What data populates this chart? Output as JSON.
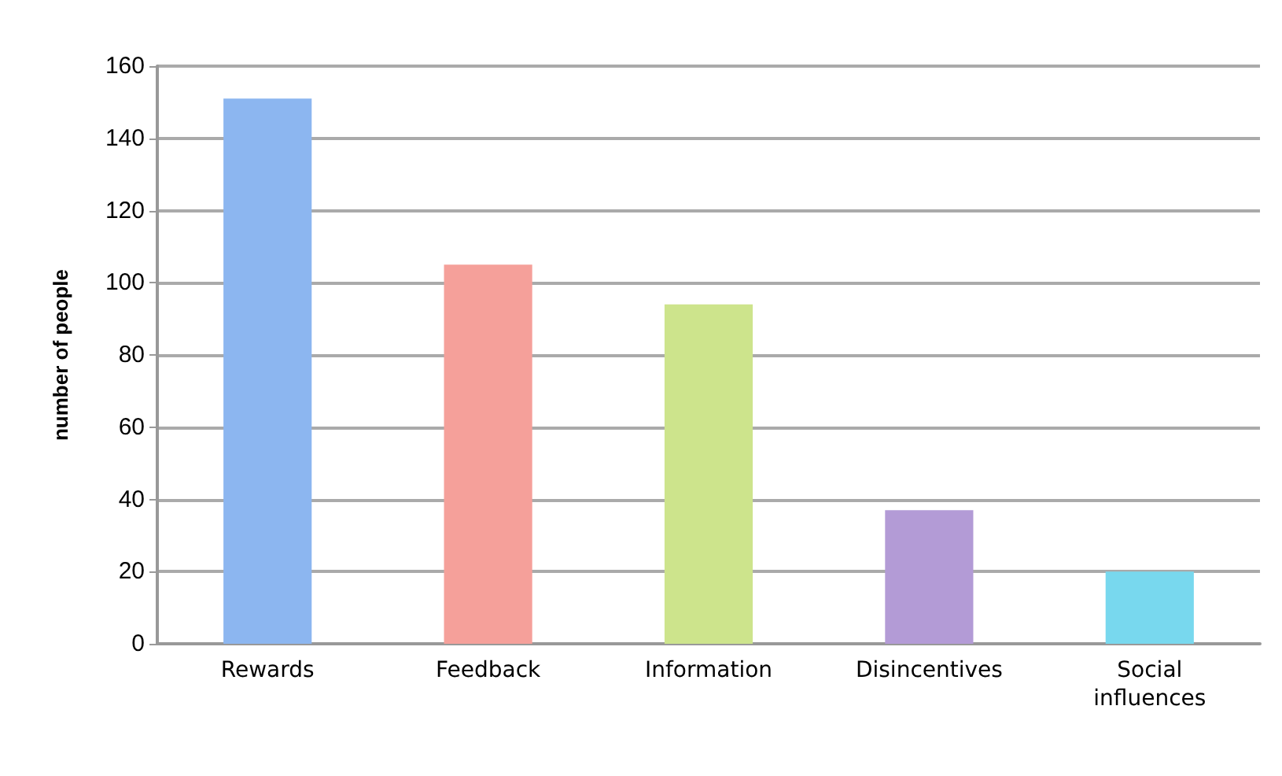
{
  "chart_data": {
    "type": "bar",
    "ylabel": "number of people",
    "categories": [
      "Rewards",
      "Feedback",
      "Information",
      "Disincentives",
      "Social\ninfluences"
    ],
    "values": [
      151,
      105,
      94,
      37,
      20
    ],
    "colors": [
      "#8cb6f0",
      "#f5a09a",
      "#cde48c",
      "#b39bd6",
      "#78d8ee"
    ],
    "ylim": [
      0,
      160
    ],
    "yticks": [
      0,
      20,
      40,
      60,
      80,
      100,
      120,
      140,
      160
    ],
    "grid": "y"
  }
}
